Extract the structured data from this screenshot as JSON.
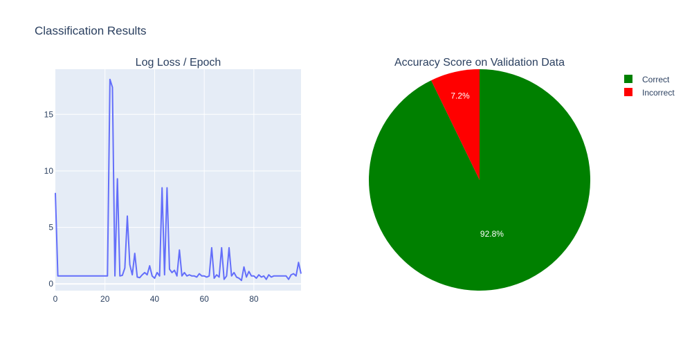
{
  "figure": {
    "title": "Classification Results"
  },
  "chart_data": [
    {
      "type": "line",
      "title": "Log Loss / Epoch",
      "xlabel": "",
      "ylabel": "",
      "xlim": [
        0,
        99
      ],
      "ylim": [
        -0.6,
        19
      ],
      "xticks": [
        0,
        20,
        40,
        60,
        80
      ],
      "yticks": [
        0,
        5,
        10,
        15
      ],
      "grid": true,
      "color": "#636efa",
      "series": [
        {
          "x": [
            0,
            1,
            2,
            3,
            4,
            5,
            6,
            7,
            8,
            9,
            10,
            11,
            12,
            13,
            14,
            15,
            16,
            17,
            18,
            19,
            20,
            21,
            22,
            23,
            24,
            25,
            26,
            27,
            28,
            29,
            30,
            31,
            32,
            33,
            34,
            35,
            36,
            37,
            38,
            39,
            40,
            41,
            42,
            43,
            44,
            45,
            46,
            47,
            48,
            49,
            50,
            51,
            52,
            53,
            54,
            55,
            56,
            57,
            58,
            59,
            60,
            61,
            62,
            63,
            64,
            65,
            66,
            67,
            68,
            69,
            70,
            71,
            72,
            73,
            74,
            75,
            76,
            77,
            78,
            79,
            80,
            81,
            82,
            83,
            84,
            85,
            86,
            87,
            88,
            89,
            90,
            91,
            92,
            93,
            94,
            95,
            96,
            97,
            98,
            99
          ],
          "y": [
            8.05,
            0.7,
            0.7,
            0.7,
            0.7,
            0.7,
            0.7,
            0.7,
            0.7,
            0.7,
            0.7,
            0.7,
            0.7,
            0.7,
            0.7,
            0.7,
            0.7,
            0.7,
            0.7,
            0.7,
            0.7,
            0.7,
            18.1,
            17.4,
            0.7,
            9.3,
            0.7,
            0.75,
            1.4,
            6.0,
            1.7,
            0.8,
            2.7,
            0.6,
            0.55,
            0.8,
            1.0,
            0.8,
            1.6,
            0.7,
            0.5,
            1.0,
            0.7,
            8.5,
            0.8,
            8.5,
            1.3,
            1.0,
            1.2,
            0.7,
            3.0,
            0.7,
            1.0,
            0.7,
            0.8,
            0.7,
            0.7,
            0.6,
            0.9,
            0.7,
            0.7,
            0.6,
            0.7,
            3.2,
            0.5,
            0.8,
            0.6,
            3.2,
            0.4,
            0.7,
            3.2,
            0.7,
            1.0,
            0.6,
            0.5,
            0.3,
            1.5,
            0.6,
            1.1,
            0.7,
            0.7,
            0.5,
            0.8,
            0.6,
            0.7,
            0.4,
            0.8,
            0.6,
            0.7,
            0.7,
            0.7,
            0.7,
            0.7,
            0.7,
            0.4,
            0.8,
            0.9,
            0.7,
            1.9,
            0.9
          ]
        }
      ]
    },
    {
      "type": "pie",
      "title": "Accuracy Score on Validation Data",
      "labels": [
        "Correct",
        "Incorrect"
      ],
      "values": [
        92.8,
        7.2
      ],
      "text": [
        "92.8%",
        "7.2%"
      ],
      "colors": [
        "#008000",
        "#ff0000"
      ],
      "legend": "top-right"
    }
  ]
}
